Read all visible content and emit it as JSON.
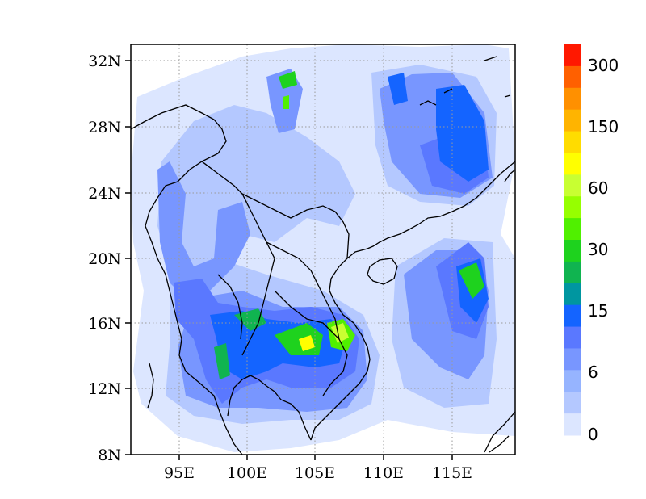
{
  "map": {
    "lat_labels": [
      "32N",
      "28N",
      "24N",
      "20N",
      "16N",
      "12N",
      "8N"
    ],
    "lon_labels": [
      "95E",
      "100E",
      "105E",
      "110E",
      "115E"
    ],
    "extent": {
      "lon": [
        91.5,
        119.5
      ],
      "lat": [
        8,
        33
      ]
    },
    "grid": "dotted"
  },
  "colorbar": {
    "labels": [
      "300",
      "150",
      "60",
      "30",
      "15",
      "6",
      "0"
    ],
    "colors": [
      "#ff1800",
      "#ff6000",
      "#ff9000",
      "#ffb400",
      "#ffdc00",
      "#ffff00",
      "#c8ff32",
      "#96ff00",
      "#50f000",
      "#1ed21e",
      "#10b450",
      "#0096a0",
      "#1464ff",
      "#5a78ff",
      "#7896ff",
      "#96b4ff",
      "#b4c8ff",
      "#dce6ff"
    ]
  }
}
